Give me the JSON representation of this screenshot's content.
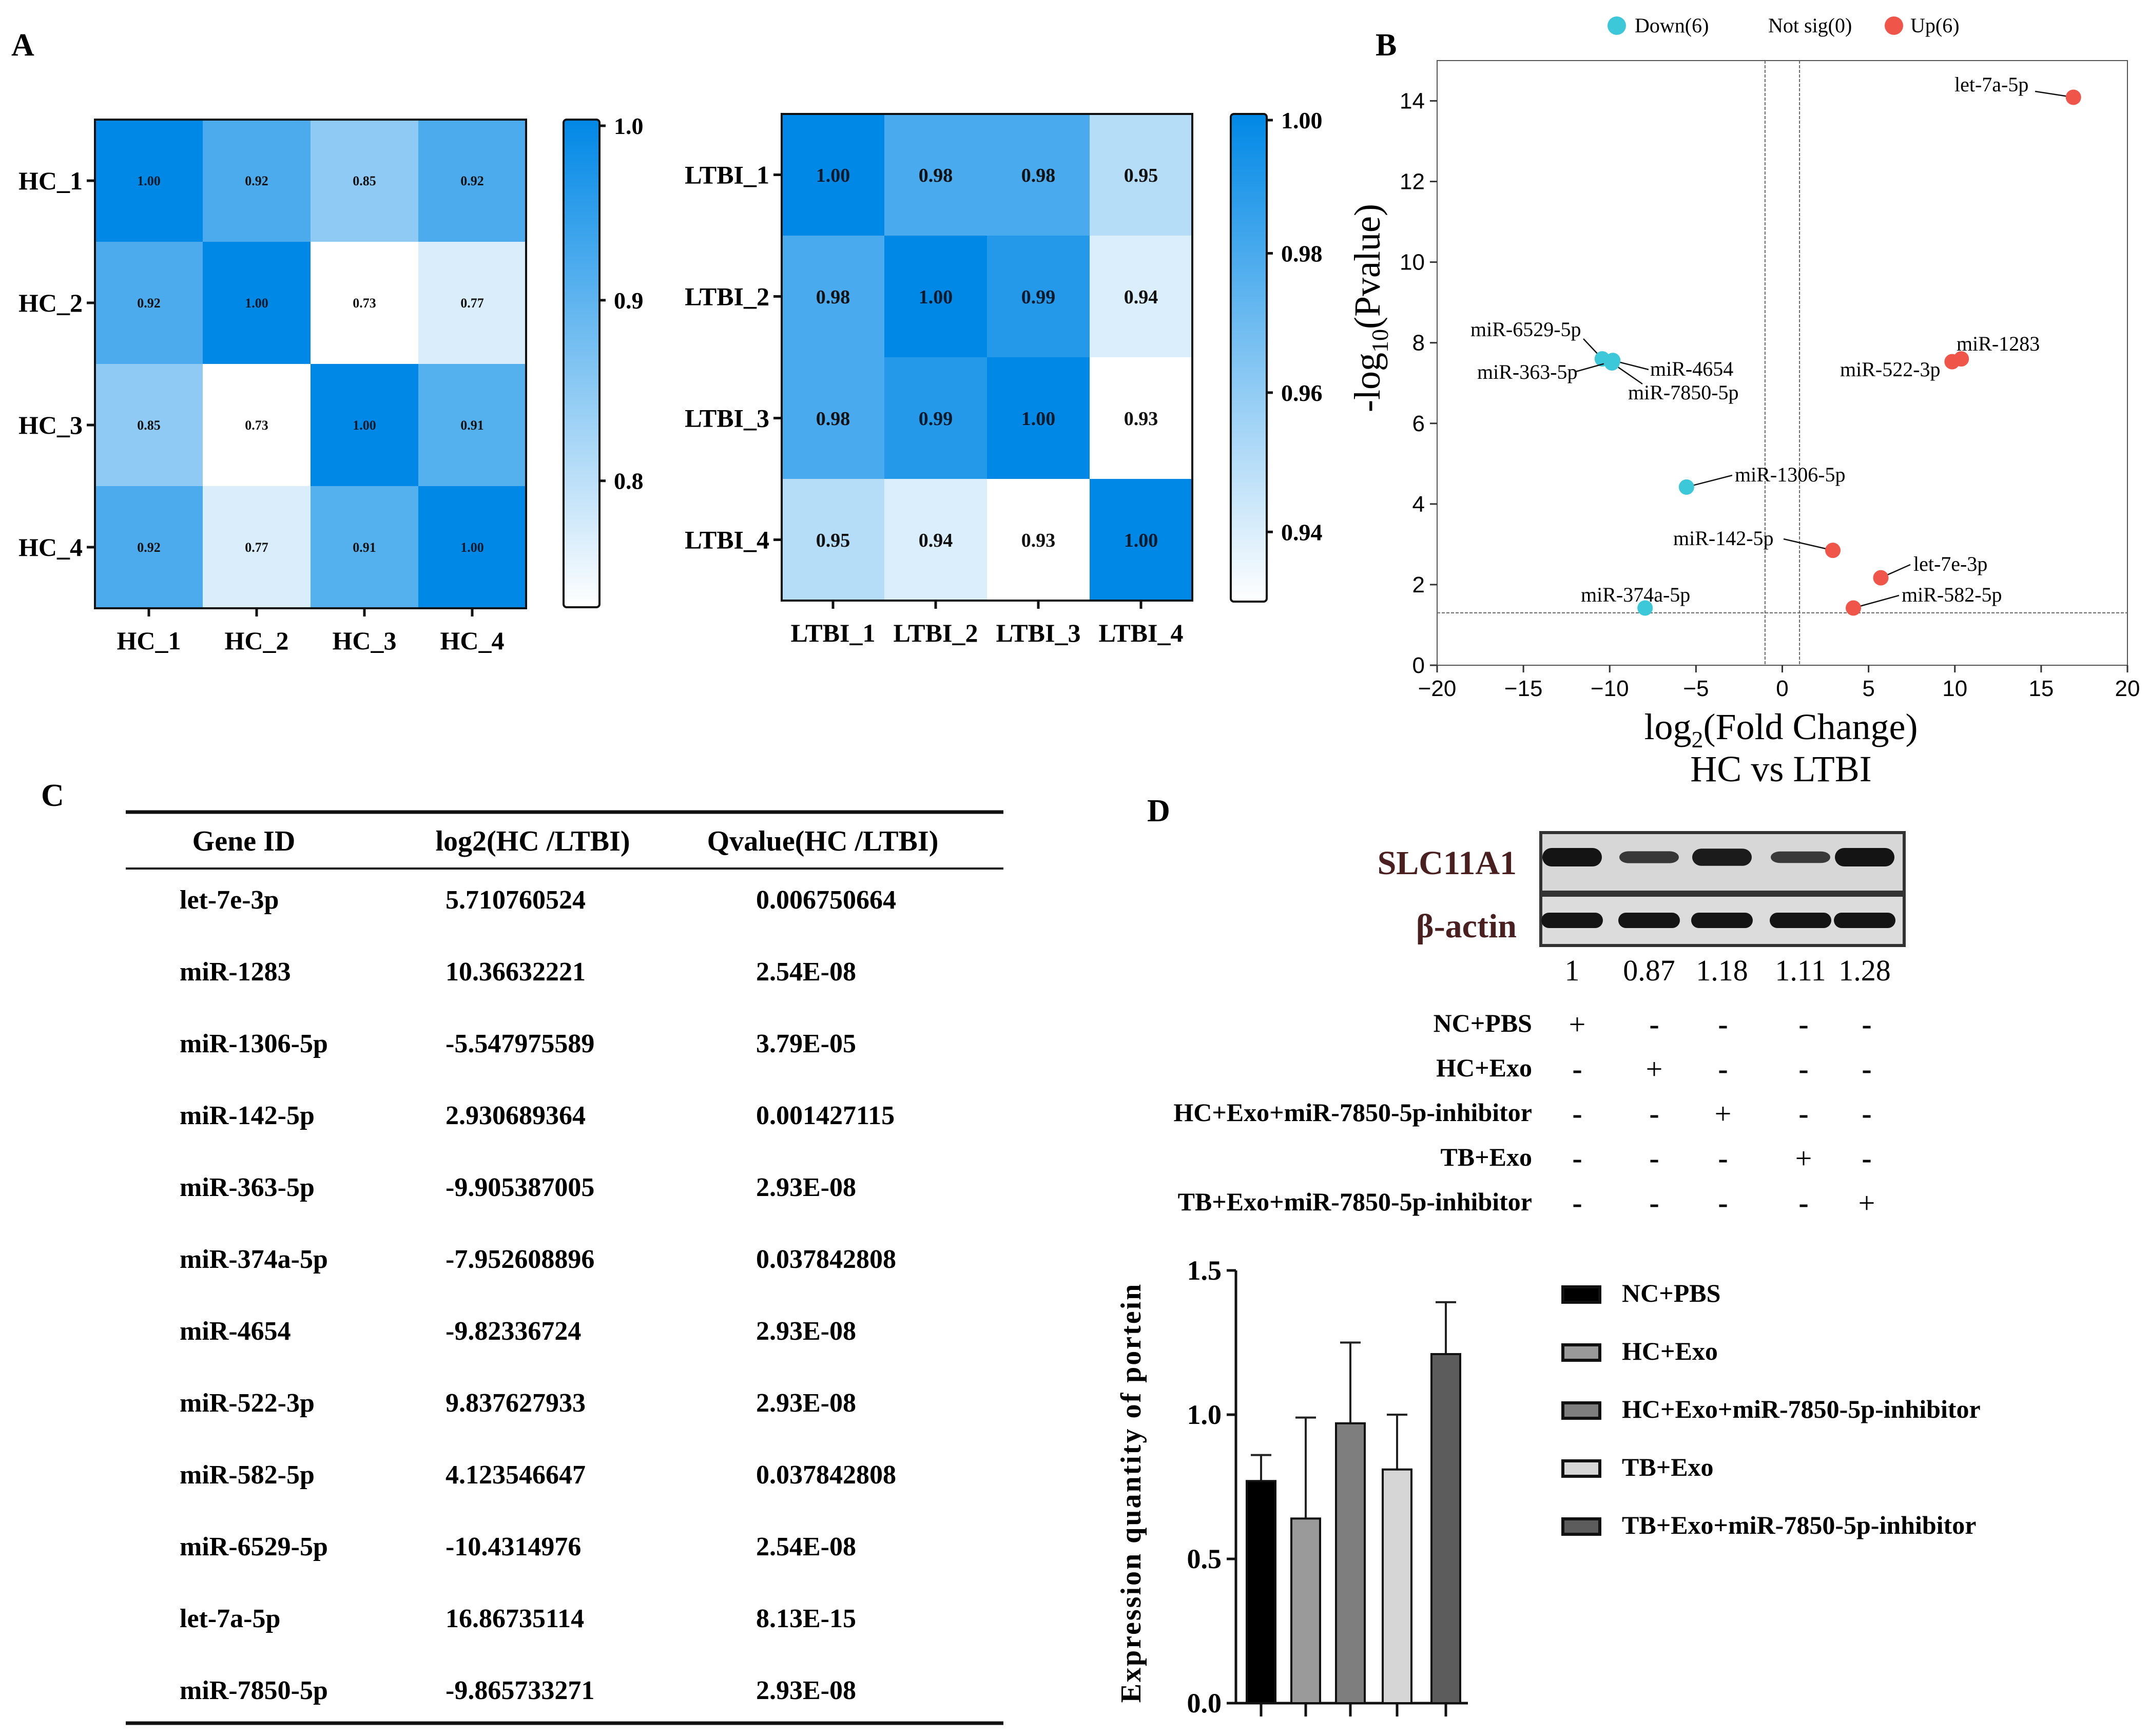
{
  "panels": {
    "a": "A",
    "b": "B",
    "c": "C",
    "d": "D"
  },
  "chart_data": [
    {
      "type": "heatmap",
      "panel": "A-left",
      "rows": [
        "HC_1",
        "HC_2",
        "HC_3",
        "HC_4"
      ],
      "cols": [
        "HC_1",
        "HC_2",
        "HC_3",
        "HC_4"
      ],
      "values": [
        [
          1.0,
          0.92,
          0.85,
          0.92
        ],
        [
          0.92,
          1.0,
          0.73,
          0.77
        ],
        [
          0.85,
          0.73,
          1.0,
          0.91
        ],
        [
          0.92,
          0.77,
          0.91,
          1.0
        ]
      ],
      "cell_labels": [
        [
          "1.00",
          "0.92",
          "0.85",
          "0.92"
        ],
        [
          "0.92",
          "1.00",
          "0.73",
          "0.77"
        ],
        [
          "0.85",
          "0.73",
          "1.00",
          "0.91"
        ],
        [
          "0.92",
          "0.77",
          "0.91",
          "1.00"
        ]
      ],
      "color_range": [
        0.73,
        1.0
      ],
      "colorbar_ticks": [
        1.0,
        0.9,
        0.8
      ],
      "colorbar_labels": [
        "1.0",
        "0.9",
        "0.8"
      ],
      "color_low": "#ffffff",
      "color_high": "#0088e6"
    },
    {
      "type": "heatmap",
      "panel": "A-right",
      "rows": [
        "LTBI_1",
        "LTBI_2",
        "LTBI_3",
        "LTBI_4"
      ],
      "cols": [
        "LTBI_1",
        "LTBI_2",
        "LTBI_3",
        "LTBI_4"
      ],
      "values": [
        [
          1.0,
          0.98,
          0.98,
          0.95
        ],
        [
          0.98,
          1.0,
          0.99,
          0.94
        ],
        [
          0.98,
          0.99,
          1.0,
          0.93
        ],
        [
          0.95,
          0.94,
          0.93,
          1.0
        ]
      ],
      "cell_labels": [
        [
          "1.00",
          "0.98",
          "0.98",
          "0.95"
        ],
        [
          "0.98",
          "1.00",
          "0.99",
          "0.94"
        ],
        [
          "0.98",
          "0.99",
          "1.00",
          "0.93"
        ],
        [
          "0.95",
          "0.94",
          "0.93",
          "1.00"
        ]
      ],
      "color_range": [
        0.93,
        1.0
      ],
      "colorbar_ticks": [
        1.0,
        0.98,
        0.96,
        0.94
      ],
      "colorbar_labels": [
        "1.00",
        "0.98",
        "0.96",
        "0.94"
      ],
      "color_low": "#ffffff",
      "color_high": "#0088e6"
    },
    {
      "type": "scatter",
      "panel": "B",
      "title": "HC vs LTBI",
      "xlabel_main": "log",
      "xlabel_sub": "2",
      "xlabel_rest": "(Fold Change)",
      "ylabel_main": "-log",
      "ylabel_sub": "10",
      "ylabel_rest": "(Pvalue)",
      "xlim": [
        -20,
        20
      ],
      "ylim": [
        0,
        15
      ],
      "xticks": [
        -20,
        -15,
        -10,
        -5,
        0,
        5,
        10,
        15,
        20
      ],
      "xtick_labels": [
        "−20",
        "−15",
        "−10",
        "−5",
        "0",
        "5",
        "10",
        "15",
        "20"
      ],
      "yticks": [
        0,
        2,
        4,
        6,
        8,
        10,
        12,
        14
      ],
      "ytick_labels": [
        "0",
        "2",
        "4",
        "6",
        "8",
        "10",
        "12",
        "14"
      ],
      "vlines": [
        -1,
        1
      ],
      "hline": 1.3,
      "legend": [
        {
          "label": "Down(6)",
          "color": "#3cc8d8",
          "marker": true
        },
        {
          "label": "Not sig(0)",
          "color": "#999999",
          "marker": false
        },
        {
          "label": "Up(6)",
          "color": "#f0554a",
          "marker": true
        }
      ],
      "points": [
        {
          "label": "let-7a-5p",
          "x": 16.87,
          "y": 14.09,
          "group": "up"
        },
        {
          "label": "miR-1283",
          "x": 10.37,
          "y": 7.6,
          "group": "up"
        },
        {
          "label": "miR-522-3p",
          "x": 9.84,
          "y": 7.53,
          "group": "up"
        },
        {
          "label": "miR-142-5p",
          "x": 2.93,
          "y": 2.85,
          "group": "up"
        },
        {
          "label": "let-7e-3p",
          "x": 5.71,
          "y": 2.17,
          "group": "up"
        },
        {
          "label": "miR-582-5p",
          "x": 4.12,
          "y": 1.42,
          "group": "up"
        },
        {
          "label": "miR-6529-5p",
          "x": -10.43,
          "y": 7.6,
          "group": "down"
        },
        {
          "label": "miR-363-5p",
          "x": -9.91,
          "y": 7.53,
          "group": "down"
        },
        {
          "label": "miR-4654",
          "x": -9.82,
          "y": 7.56,
          "group": "down"
        },
        {
          "label": "miR-7850-5p",
          "x": -9.87,
          "y": 7.5,
          "group": "down"
        },
        {
          "label": "miR-1306-5p",
          "x": -5.55,
          "y": 4.42,
          "group": "down"
        },
        {
          "label": "miR-374a-5p",
          "x": -7.95,
          "y": 1.42,
          "group": "down"
        }
      ]
    },
    {
      "type": "table",
      "panel": "C",
      "columns": [
        "Gene ID",
        "log2(HC /LTBI)",
        "Qvalue(HC /LTBI)"
      ],
      "rows": [
        [
          "let-7e-3p",
          "5.710760524",
          "0.006750664"
        ],
        [
          "miR-1283",
          "10.36632221",
          "2.54E-08"
        ],
        [
          "miR-1306-5p",
          "-5.547975589",
          "3.79E-05"
        ],
        [
          "miR-142-5p",
          "2.930689364",
          "0.001427115"
        ],
        [
          "miR-363-5p",
          "-9.905387005",
          "2.93E-08"
        ],
        [
          "miR-374a-5p",
          "-7.952608896",
          "0.037842808"
        ],
        [
          "miR-4654",
          "-9.82336724",
          "2.93E-08"
        ],
        [
          "miR-522-3p",
          "9.837627933",
          "2.93E-08"
        ],
        [
          "miR-582-5p",
          "4.123546647",
          "0.037842808"
        ],
        [
          "miR-6529-5p",
          "-10.4314976",
          "2.54E-08"
        ],
        [
          "let-7a-5p",
          "16.86735114",
          "8.13E-15"
        ],
        [
          "miR-7850-5p",
          "-9.865733271",
          "2.93E-08"
        ]
      ]
    },
    {
      "type": "bar",
      "panel": "D",
      "ylabel": "Expression quantity of portein",
      "ylim": [
        0,
        1.5
      ],
      "yticks": [
        0,
        0.5,
        1.0,
        1.5
      ],
      "ytick_labels": [
        "0.0",
        "0.5",
        "1.0",
        "1.5"
      ],
      "categories": [
        "NC+PBS",
        "HC+Exo",
        "HC+Exo+miR-7850-5p-inhibitor",
        "TB+Exo",
        "TB+Exo+miR-7850-5p-inhibitor"
      ],
      "values": [
        0.77,
        0.64,
        0.97,
        0.81,
        1.21
      ],
      "errors": [
        0.09,
        0.35,
        0.28,
        0.19,
        0.18
      ],
      "colors": [
        "#000000",
        "#9a9a9a",
        "#7e7e7e",
        "#d6d6d6",
        "#5c5c5c"
      ]
    }
  ],
  "western_blot": {
    "protein_label": "SLC11A1",
    "control_label": "β-actin",
    "quantities": [
      "1",
      "0.87",
      "1.18",
      "1.11",
      "1.28"
    ],
    "band_intensity": [
      1.0,
      0.6,
      0.92,
      0.58,
      1.0
    ],
    "conditions": [
      {
        "label": "NC+PBS",
        "signs": [
          "+",
          "-",
          "-",
          "-",
          "-"
        ]
      },
      {
        "label": "HC+Exo",
        "signs": [
          "-",
          "+",
          "-",
          "-",
          "-"
        ]
      },
      {
        "label": "HC+Exo+miR-7850-5p-inhibitor",
        "signs": [
          "-",
          "-",
          "+",
          "-",
          "-"
        ]
      },
      {
        "label": "TB+Exo",
        "signs": [
          "-",
          "-",
          "-",
          "+",
          "-"
        ]
      },
      {
        "label": "TB+Exo+miR-7850-5p-inhibitor",
        "signs": [
          "-",
          "-",
          "-",
          "-",
          "+"
        ]
      }
    ]
  }
}
